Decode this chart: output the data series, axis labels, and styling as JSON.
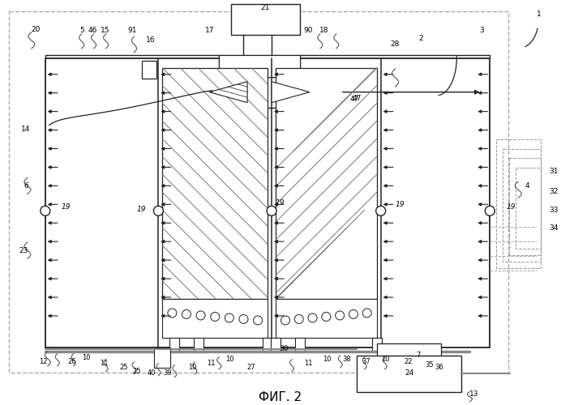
{
  "title": "ФИГ. 2",
  "bg_color": "#ffffff",
  "line_color": "#222222",
  "gray_color": "#888888",
  "figsize": [
    6.92,
    5.0
  ],
  "dpi": 100
}
